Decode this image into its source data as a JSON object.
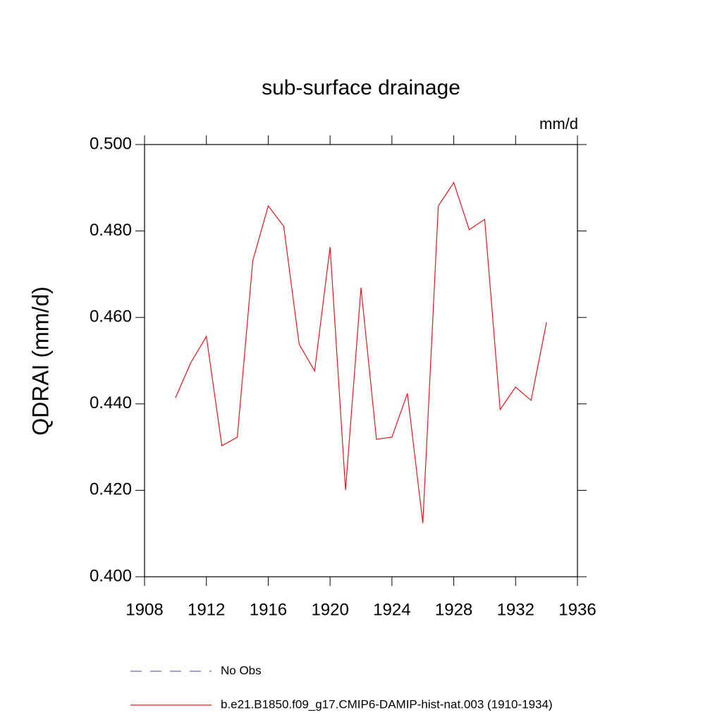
{
  "chart_data": {
    "type": "line",
    "title": "sub-surface drainage",
    "units": "mm/d",
    "y_label": "QDRAI  (mm/d)",
    "x": [
      1910,
      1911,
      1912,
      1913,
      1914,
      1915,
      1916,
      1917,
      1918,
      1919,
      1920,
      1921,
      1922,
      1923,
      1924,
      1925,
      1926,
      1927,
      1928,
      1929,
      1930,
      1931,
      1932,
      1933,
      1934
    ],
    "series": [
      {
        "name": "No Obs",
        "color": "#6a6ab8",
        "dashed": true,
        "values": [
          null,
          null,
          null,
          null,
          null,
          null,
          null,
          null,
          null,
          null,
          null,
          null,
          null,
          null,
          null,
          null,
          null,
          null,
          null,
          null,
          null,
          null,
          null,
          null,
          null
        ]
      },
      {
        "name": "b.e21.B1850.f09_g17.CMIP6-DAMIP-hist-nat.003 (1910-1934)",
        "color": "#e8161b",
        "dashed": false,
        "values": [
          0.4414,
          0.4496,
          0.4556,
          0.4303,
          0.4323,
          0.4731,
          0.4858,
          0.4811,
          0.4538,
          0.4476,
          0.4763,
          0.4201,
          0.4669,
          0.4318,
          0.4323,
          0.4424,
          0.4124,
          0.4858,
          0.4912,
          0.4803,
          0.4827,
          0.4387,
          0.4439,
          0.4408,
          0.4589
        ]
      }
    ],
    "xlim": [
      1908,
      1936
    ],
    "xticks": [
      1908,
      1912,
      1916,
      1920,
      1924,
      1928,
      1932,
      1936
    ],
    "ylim": [
      0.4,
      0.5
    ],
    "yticks": [
      {
        "value": 0.4,
        "label": "0.400"
      },
      {
        "value": 0.42,
        "label": "0.420"
      },
      {
        "value": 0.44,
        "label": "0.440"
      },
      {
        "value": 0.46,
        "label": "0.460"
      },
      {
        "value": 0.48,
        "label": "0.480"
      },
      {
        "value": 0.5,
        "label": "0.500"
      }
    ]
  }
}
